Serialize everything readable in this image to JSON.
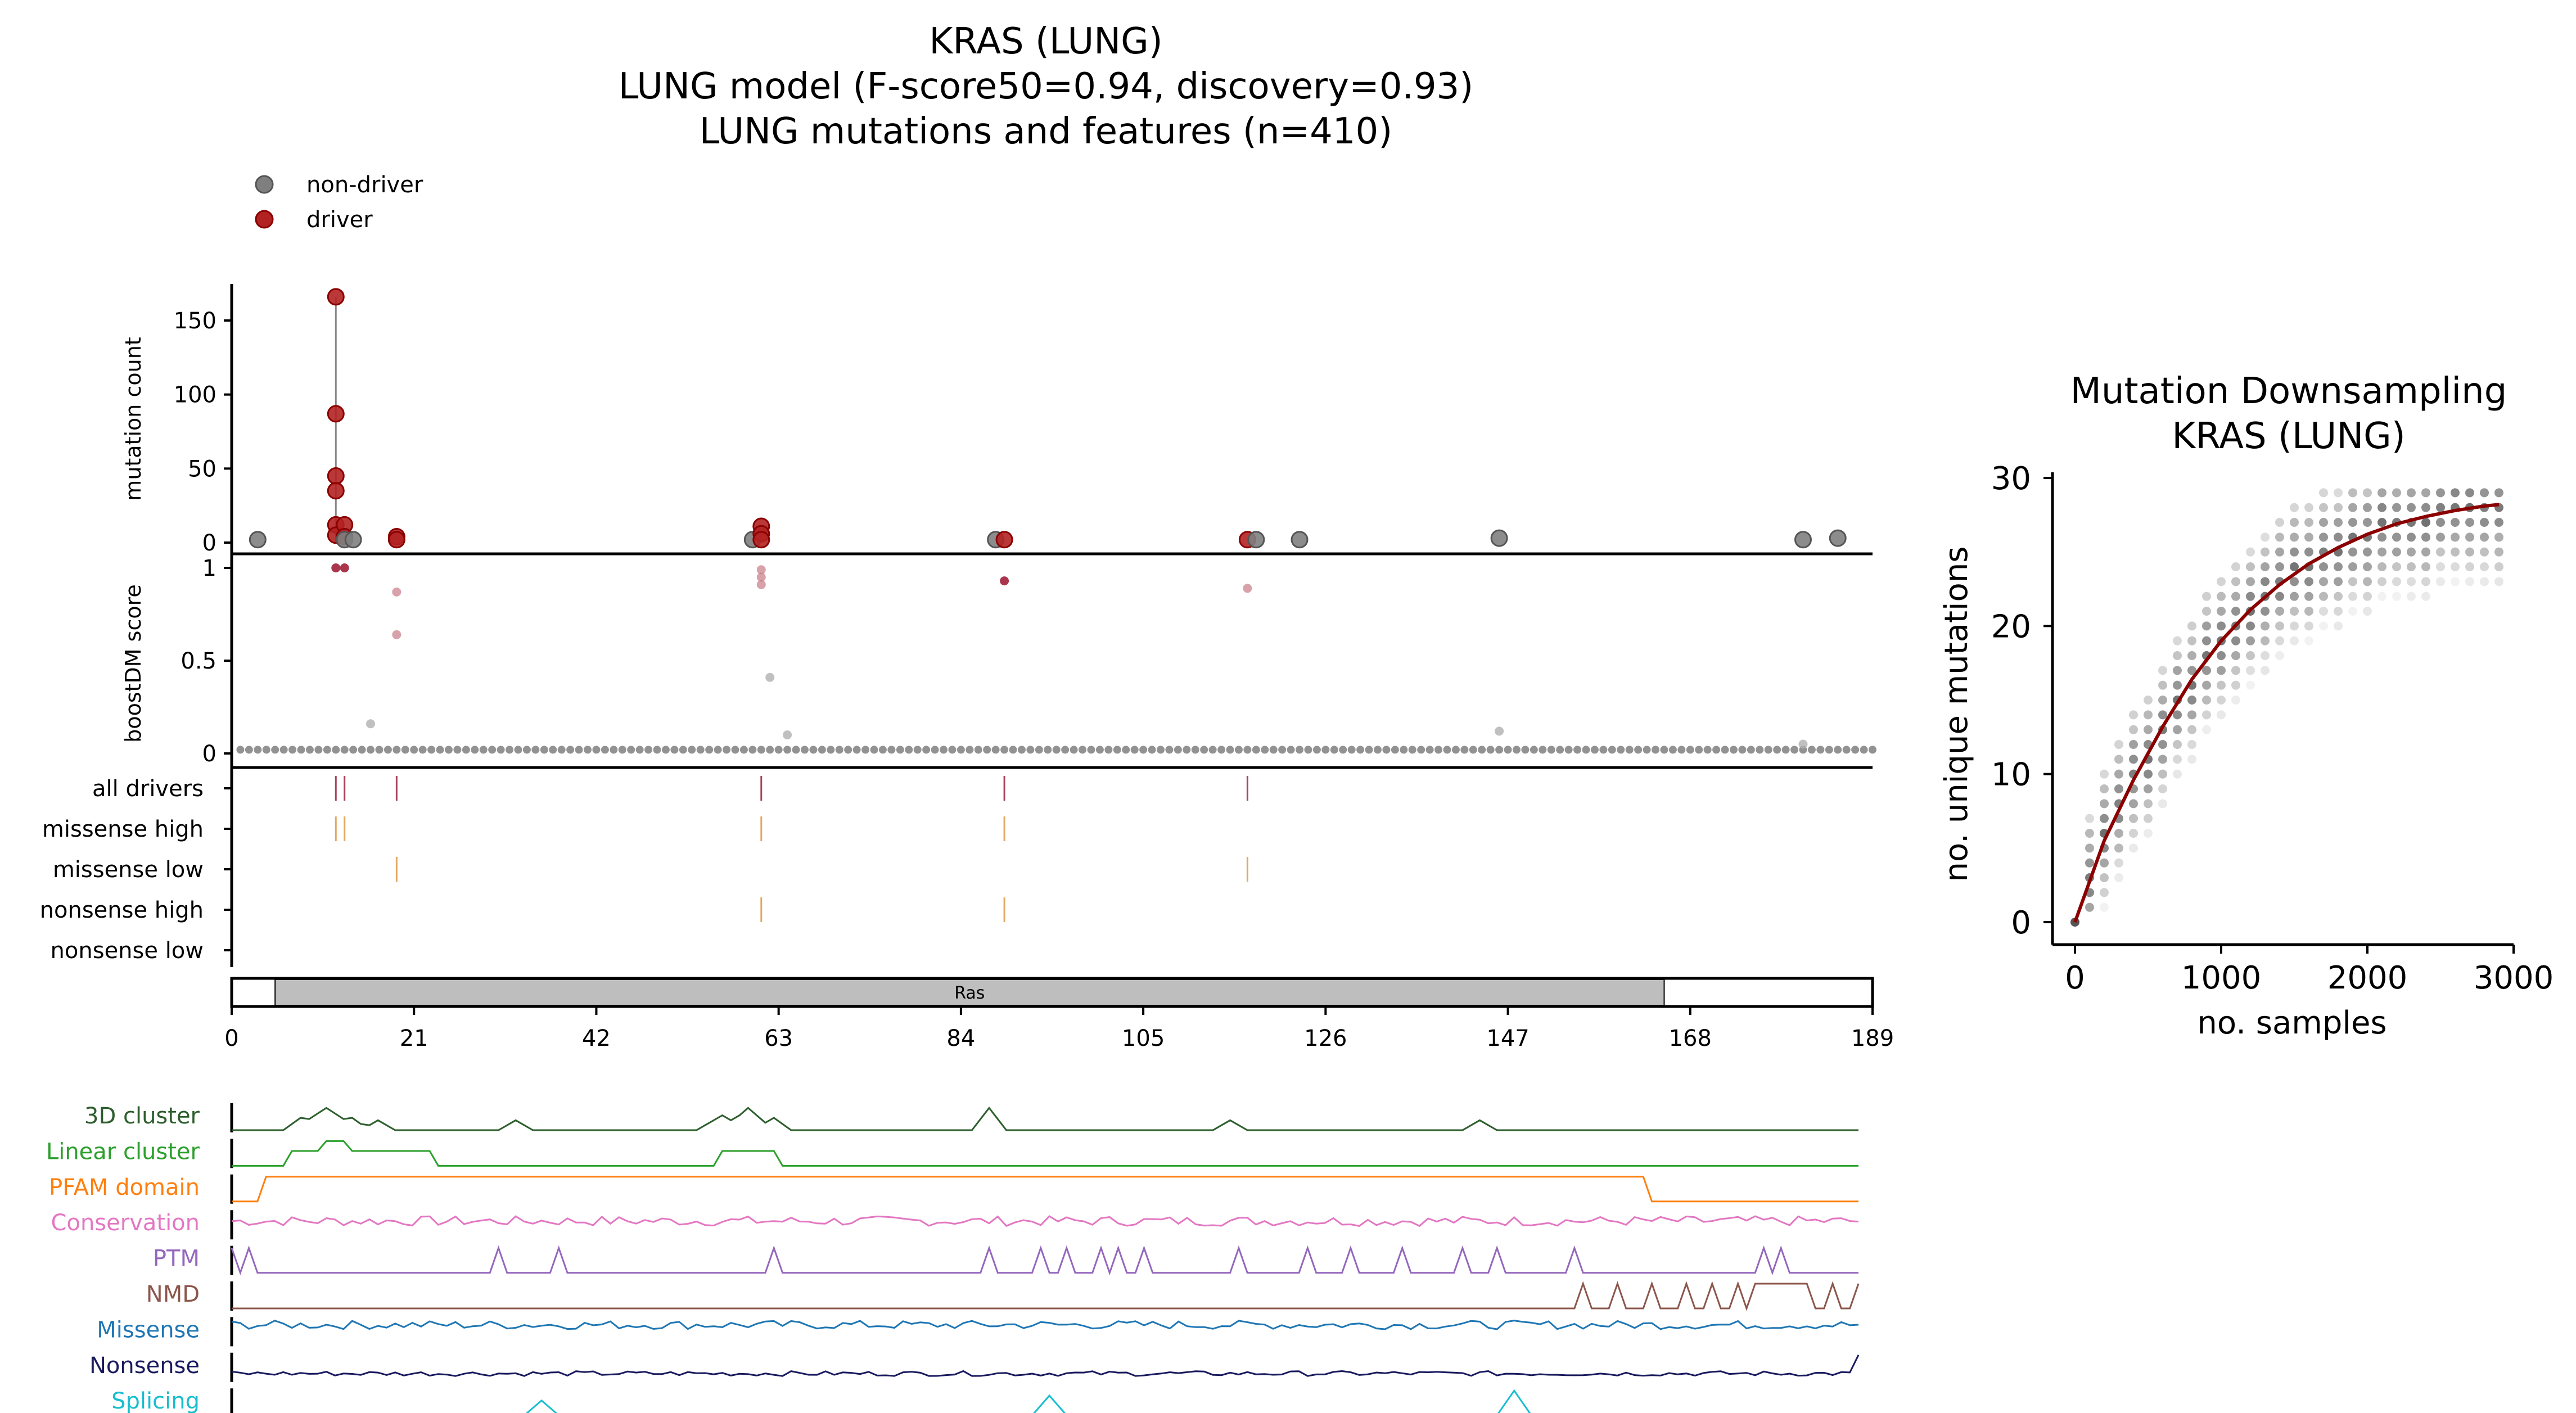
{
  "header": {
    "title_line1": "KRAS (LUNG)",
    "title_line2": "LUNG model (F-score50=0.94, discovery=0.93)",
    "title_line3": "LUNG mutations and features (n=410)"
  },
  "legend": {
    "placement": "top-left",
    "items": [
      {
        "label": "non-driver",
        "color": "#7f7f7f"
      },
      {
        "label": "driver",
        "color": "#b22222"
      }
    ]
  },
  "colors": {
    "nondriver": "#7f7f7f",
    "driver": "#b22222",
    "driver_edge": "#8b0000",
    "missense_mark": "#e0a050",
    "all_drivers_mark": "#a0304a",
    "domain_fill": "#bebebe",
    "curve": "#8b0000"
  },
  "chart_data": [
    {
      "type": "scatter",
      "name": "mutation-count-panel",
      "ylabel": "mutation count",
      "ylim": [
        0,
        170
      ],
      "yticks": [
        0,
        50,
        100,
        150
      ],
      "xlim": [
        0,
        189
      ],
      "driver_stack": {
        "x": 12,
        "y_max": 166
      },
      "points": [
        {
          "x": 3,
          "y": 2,
          "cls": "nondriver"
        },
        {
          "x": 12,
          "y": 166,
          "cls": "driver"
        },
        {
          "x": 12,
          "y": 87,
          "cls": "driver"
        },
        {
          "x": 12,
          "y": 45,
          "cls": "driver"
        },
        {
          "x": 12,
          "y": 35,
          "cls": "driver"
        },
        {
          "x": 12,
          "y": 12,
          "cls": "driver"
        },
        {
          "x": 12,
          "y": 5,
          "cls": "driver"
        },
        {
          "x": 13,
          "y": 12,
          "cls": "driver"
        },
        {
          "x": 13,
          "y": 4,
          "cls": "driver"
        },
        {
          "x": 13,
          "y": 2,
          "cls": "nondriver"
        },
        {
          "x": 14,
          "y": 2,
          "cls": "nondriver"
        },
        {
          "x": 19,
          "y": 4,
          "cls": "driver"
        },
        {
          "x": 19,
          "y": 2,
          "cls": "driver"
        },
        {
          "x": 60,
          "y": 2,
          "cls": "nondriver"
        },
        {
          "x": 61,
          "y": 11,
          "cls": "driver"
        },
        {
          "x": 61,
          "y": 6,
          "cls": "driver"
        },
        {
          "x": 61,
          "y": 2,
          "cls": "driver"
        },
        {
          "x": 88,
          "y": 2,
          "cls": "nondriver"
        },
        {
          "x": 89,
          "y": 2,
          "cls": "driver"
        },
        {
          "x": 117,
          "y": 2,
          "cls": "driver"
        },
        {
          "x": 118,
          "y": 2,
          "cls": "nondriver"
        },
        {
          "x": 123,
          "y": 2,
          "cls": "nondriver"
        },
        {
          "x": 146,
          "y": 3,
          "cls": "nondriver"
        },
        {
          "x": 181,
          "y": 2,
          "cls": "nondriver"
        },
        {
          "x": 185,
          "y": 3,
          "cls": "nondriver"
        }
      ]
    },
    {
      "type": "scatter",
      "name": "boostdm-score-panel",
      "ylabel": "boostDM score",
      "ylim": [
        0,
        1
      ],
      "yticks": [
        0,
        0.5,
        1
      ],
      "ytick_labels": [
        "0",
        "0.5",
        "1"
      ],
      "baseline_score": 0.02,
      "points": [
        {
          "x": 12,
          "y": 1.0,
          "cls": "driver"
        },
        {
          "x": 13,
          "y": 1.0,
          "cls": "driver"
        },
        {
          "x": 19,
          "y": 0.87,
          "cls": "driver_light"
        },
        {
          "x": 19,
          "y": 0.64,
          "cls": "driver_light"
        },
        {
          "x": 16,
          "y": 0.16,
          "cls": "nondriver_light"
        },
        {
          "x": 61,
          "y": 0.99,
          "cls": "driver_light"
        },
        {
          "x": 61,
          "y": 0.95,
          "cls": "driver_light"
        },
        {
          "x": 61,
          "y": 0.91,
          "cls": "driver_light"
        },
        {
          "x": 62,
          "y": 0.41,
          "cls": "nondriver_light"
        },
        {
          "x": 64,
          "y": 0.1,
          "cls": "nondriver_light"
        },
        {
          "x": 89,
          "y": 0.93,
          "cls": "driver"
        },
        {
          "x": 117,
          "y": 0.89,
          "cls": "driver_light"
        },
        {
          "x": 146,
          "y": 0.12,
          "cls": "nondriver_light"
        },
        {
          "x": 181,
          "y": 0.05,
          "cls": "nondriver_light"
        }
      ]
    },
    {
      "type": "table",
      "name": "driver-category-tracks",
      "tracks": [
        {
          "label": "all drivers",
          "positions": [
            12,
            13,
            19,
            61,
            89,
            117
          ],
          "color": "#a0304a"
        },
        {
          "label": "missense high",
          "positions": [
            12,
            13,
            61,
            89
          ],
          "color": "#e0a050"
        },
        {
          "label": "missense low",
          "positions": [
            19,
            117
          ],
          "color": "#e0a050"
        },
        {
          "label": "nonsense high",
          "positions": [
            61,
            89
          ],
          "color": "#e0a050"
        },
        {
          "label": "nonsense low",
          "positions": [],
          "color": "#e0a050"
        }
      ]
    },
    {
      "type": "bar",
      "name": "protein-domain-axis",
      "domains": [
        {
          "label": "Ras",
          "start": 5,
          "end": 165
        }
      ],
      "xlim": [
        0,
        189
      ],
      "xticks": [
        0,
        21,
        42,
        63,
        84,
        105,
        126,
        147,
        168,
        189
      ]
    },
    {
      "type": "line",
      "name": "feature-tracks",
      "xlim": [
        0,
        189
      ],
      "tracks": [
        {
          "label": "3D cluster",
          "color": "#2d5e2d"
        },
        {
          "label": "Linear cluster",
          "color": "#2ca02c"
        },
        {
          "label": "PFAM domain",
          "color": "#ff7f0e"
        },
        {
          "label": "Conservation",
          "color": "#e377c2"
        },
        {
          "label": "PTM",
          "color": "#9467bd"
        },
        {
          "label": "NMD",
          "color": "#8c564b"
        },
        {
          "label": "Missense",
          "color": "#1f77b4"
        },
        {
          "label": "Nonsense",
          "color": "#1a1a5e"
        },
        {
          "label": "Splicing",
          "color": "#17becf"
        }
      ]
    },
    {
      "type": "scatter",
      "name": "mutation-downsampling",
      "title_line1": "Mutation Downsampling",
      "title_line2": "KRAS (LUNG)",
      "xlabel": "no. samples",
      "ylabel": "no. unique mutations",
      "xlim": [
        -150,
        3000
      ],
      "ylim": [
        -1,
        30.5
      ],
      "xticks": [
        0,
        1000,
        2000,
        3000
      ],
      "yticks": [
        0,
        10,
        20,
        30
      ],
      "fit_curve": {
        "x": [
          0,
          200,
          400,
          600,
          800,
          1000,
          1200,
          1400,
          1600,
          1800,
          2000,
          2200,
          2400,
          2600,
          2800,
          2900
        ],
        "y": [
          0,
          5.5,
          9.6,
          13.2,
          16.4,
          19.0,
          21.1,
          22.8,
          24.2,
          25.3,
          26.2,
          26.9,
          27.4,
          27.8,
          28.1,
          28.2
        ]
      }
    }
  ]
}
